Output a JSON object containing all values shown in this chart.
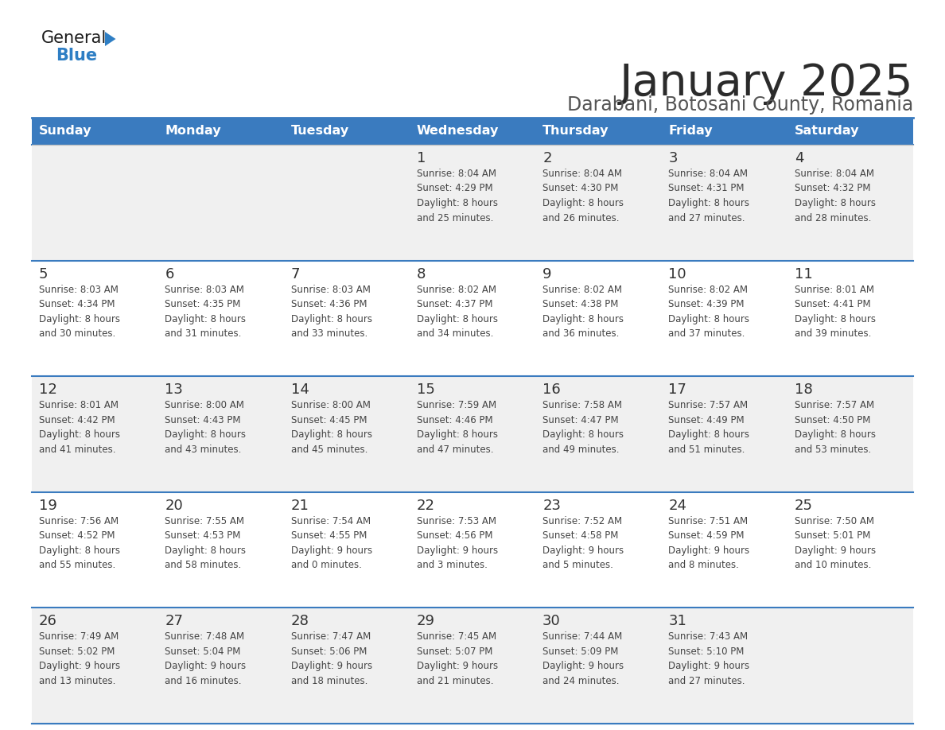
{
  "title": "January 2025",
  "subtitle": "Darabani, Botosani County, Romania",
  "header_bg": "#3a7bbf",
  "header_text": "#ffffff",
  "day_headers": [
    "Sunday",
    "Monday",
    "Tuesday",
    "Wednesday",
    "Thursday",
    "Friday",
    "Saturday"
  ],
  "row_bg_odd": "#f0f0f0",
  "row_bg_even": "#ffffff",
  "cell_border_color": "#3a7bbf",
  "day_num_color": "#333333",
  "info_color": "#444444",
  "logo_general_color": "#1a1a1a",
  "logo_blue_color": "#2e7ec4",
  "weeks": [
    {
      "days": [
        {
          "day": null,
          "info": ""
        },
        {
          "day": null,
          "info": ""
        },
        {
          "day": null,
          "info": ""
        },
        {
          "day": 1,
          "info": "Sunrise: 8:04 AM\nSunset: 4:29 PM\nDaylight: 8 hours\nand 25 minutes."
        },
        {
          "day": 2,
          "info": "Sunrise: 8:04 AM\nSunset: 4:30 PM\nDaylight: 8 hours\nand 26 minutes."
        },
        {
          "day": 3,
          "info": "Sunrise: 8:04 AM\nSunset: 4:31 PM\nDaylight: 8 hours\nand 27 minutes."
        },
        {
          "day": 4,
          "info": "Sunrise: 8:04 AM\nSunset: 4:32 PM\nDaylight: 8 hours\nand 28 minutes."
        }
      ]
    },
    {
      "days": [
        {
          "day": 5,
          "info": "Sunrise: 8:03 AM\nSunset: 4:34 PM\nDaylight: 8 hours\nand 30 minutes."
        },
        {
          "day": 6,
          "info": "Sunrise: 8:03 AM\nSunset: 4:35 PM\nDaylight: 8 hours\nand 31 minutes."
        },
        {
          "day": 7,
          "info": "Sunrise: 8:03 AM\nSunset: 4:36 PM\nDaylight: 8 hours\nand 33 minutes."
        },
        {
          "day": 8,
          "info": "Sunrise: 8:02 AM\nSunset: 4:37 PM\nDaylight: 8 hours\nand 34 minutes."
        },
        {
          "day": 9,
          "info": "Sunrise: 8:02 AM\nSunset: 4:38 PM\nDaylight: 8 hours\nand 36 minutes."
        },
        {
          "day": 10,
          "info": "Sunrise: 8:02 AM\nSunset: 4:39 PM\nDaylight: 8 hours\nand 37 minutes."
        },
        {
          "day": 11,
          "info": "Sunrise: 8:01 AM\nSunset: 4:41 PM\nDaylight: 8 hours\nand 39 minutes."
        }
      ]
    },
    {
      "days": [
        {
          "day": 12,
          "info": "Sunrise: 8:01 AM\nSunset: 4:42 PM\nDaylight: 8 hours\nand 41 minutes."
        },
        {
          "day": 13,
          "info": "Sunrise: 8:00 AM\nSunset: 4:43 PM\nDaylight: 8 hours\nand 43 minutes."
        },
        {
          "day": 14,
          "info": "Sunrise: 8:00 AM\nSunset: 4:45 PM\nDaylight: 8 hours\nand 45 minutes."
        },
        {
          "day": 15,
          "info": "Sunrise: 7:59 AM\nSunset: 4:46 PM\nDaylight: 8 hours\nand 47 minutes."
        },
        {
          "day": 16,
          "info": "Sunrise: 7:58 AM\nSunset: 4:47 PM\nDaylight: 8 hours\nand 49 minutes."
        },
        {
          "day": 17,
          "info": "Sunrise: 7:57 AM\nSunset: 4:49 PM\nDaylight: 8 hours\nand 51 minutes."
        },
        {
          "day": 18,
          "info": "Sunrise: 7:57 AM\nSunset: 4:50 PM\nDaylight: 8 hours\nand 53 minutes."
        }
      ]
    },
    {
      "days": [
        {
          "day": 19,
          "info": "Sunrise: 7:56 AM\nSunset: 4:52 PM\nDaylight: 8 hours\nand 55 minutes."
        },
        {
          "day": 20,
          "info": "Sunrise: 7:55 AM\nSunset: 4:53 PM\nDaylight: 8 hours\nand 58 minutes."
        },
        {
          "day": 21,
          "info": "Sunrise: 7:54 AM\nSunset: 4:55 PM\nDaylight: 9 hours\nand 0 minutes."
        },
        {
          "day": 22,
          "info": "Sunrise: 7:53 AM\nSunset: 4:56 PM\nDaylight: 9 hours\nand 3 minutes."
        },
        {
          "day": 23,
          "info": "Sunrise: 7:52 AM\nSunset: 4:58 PM\nDaylight: 9 hours\nand 5 minutes."
        },
        {
          "day": 24,
          "info": "Sunrise: 7:51 AM\nSunset: 4:59 PM\nDaylight: 9 hours\nand 8 minutes."
        },
        {
          "day": 25,
          "info": "Sunrise: 7:50 AM\nSunset: 5:01 PM\nDaylight: 9 hours\nand 10 minutes."
        }
      ]
    },
    {
      "days": [
        {
          "day": 26,
          "info": "Sunrise: 7:49 AM\nSunset: 5:02 PM\nDaylight: 9 hours\nand 13 minutes."
        },
        {
          "day": 27,
          "info": "Sunrise: 7:48 AM\nSunset: 5:04 PM\nDaylight: 9 hours\nand 16 minutes."
        },
        {
          "day": 28,
          "info": "Sunrise: 7:47 AM\nSunset: 5:06 PM\nDaylight: 9 hours\nand 18 minutes."
        },
        {
          "day": 29,
          "info": "Sunrise: 7:45 AM\nSunset: 5:07 PM\nDaylight: 9 hours\nand 21 minutes."
        },
        {
          "day": 30,
          "info": "Sunrise: 7:44 AM\nSunset: 5:09 PM\nDaylight: 9 hours\nand 24 minutes."
        },
        {
          "day": 31,
          "info": "Sunrise: 7:43 AM\nSunset: 5:10 PM\nDaylight: 9 hours\nand 27 minutes."
        },
        {
          "day": null,
          "info": ""
        }
      ]
    }
  ]
}
